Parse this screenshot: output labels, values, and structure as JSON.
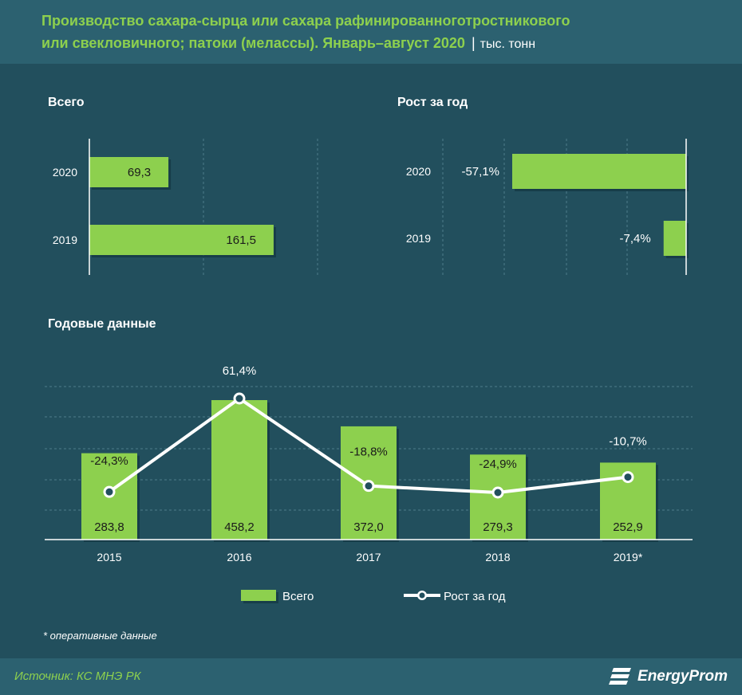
{
  "header": {
    "title_line1": "Производство сахара-сырца или сахара рафинированноготростникового",
    "title_line2": "или свекловичного; патоки (мелассы). Январь–август 2020",
    "separator": "|",
    "unit": "тыс. тонн"
  },
  "colors": {
    "bar": "#8dd04e",
    "bg": "#224f5d",
    "header_bg": "#2c6170",
    "title": "#8dd04e"
  },
  "chart_data": [
    {
      "type": "bar",
      "orientation": "horizontal",
      "title": "Всего",
      "categories": [
        "2020",
        "2019"
      ],
      "values": [
        69.3,
        161.5
      ],
      "value_labels": [
        "69,3",
        "161,5"
      ],
      "xlim": [
        0,
        240
      ]
    },
    {
      "type": "bar",
      "orientation": "horizontal",
      "title": "Рост за год",
      "categories": [
        "2020",
        "2019"
      ],
      "values": [
        -57.1,
        -7.4
      ],
      "value_labels": [
        "-57,1%",
        "-7,4%"
      ],
      "xlim": [
        -80,
        0
      ]
    },
    {
      "type": "bar+line",
      "title": "Годовые данные",
      "categories": [
        "2015",
        "2016",
        "2017",
        "2018",
        "2019*"
      ],
      "series": [
        {
          "name": "Всего",
          "type": "bar",
          "values": [
            283.8,
            458.2,
            372.0,
            279.3,
            252.9
          ],
          "value_labels": [
            "283,8",
            "458,2",
            "372,0",
            "279,3",
            "252,9"
          ]
        },
        {
          "name": "Рост за год",
          "type": "line",
          "values": [
            -24.3,
            61.4,
            -18.8,
            -24.9,
            -10.7
          ],
          "value_labels": [
            "-24,3%",
            "61,4%",
            "-18,8%",
            "-24,9%",
            "-10,7%"
          ]
        }
      ],
      "ylim_bars": [
        0,
        500
      ],
      "ylim_line": [
        -80,
        100
      ],
      "legend": [
        "Всего",
        "Рост за год"
      ]
    }
  ],
  "footnote": "* оперативные данные",
  "footer": {
    "source": "Источник: КС МНЭ РК",
    "logo": "EnergyProm"
  }
}
